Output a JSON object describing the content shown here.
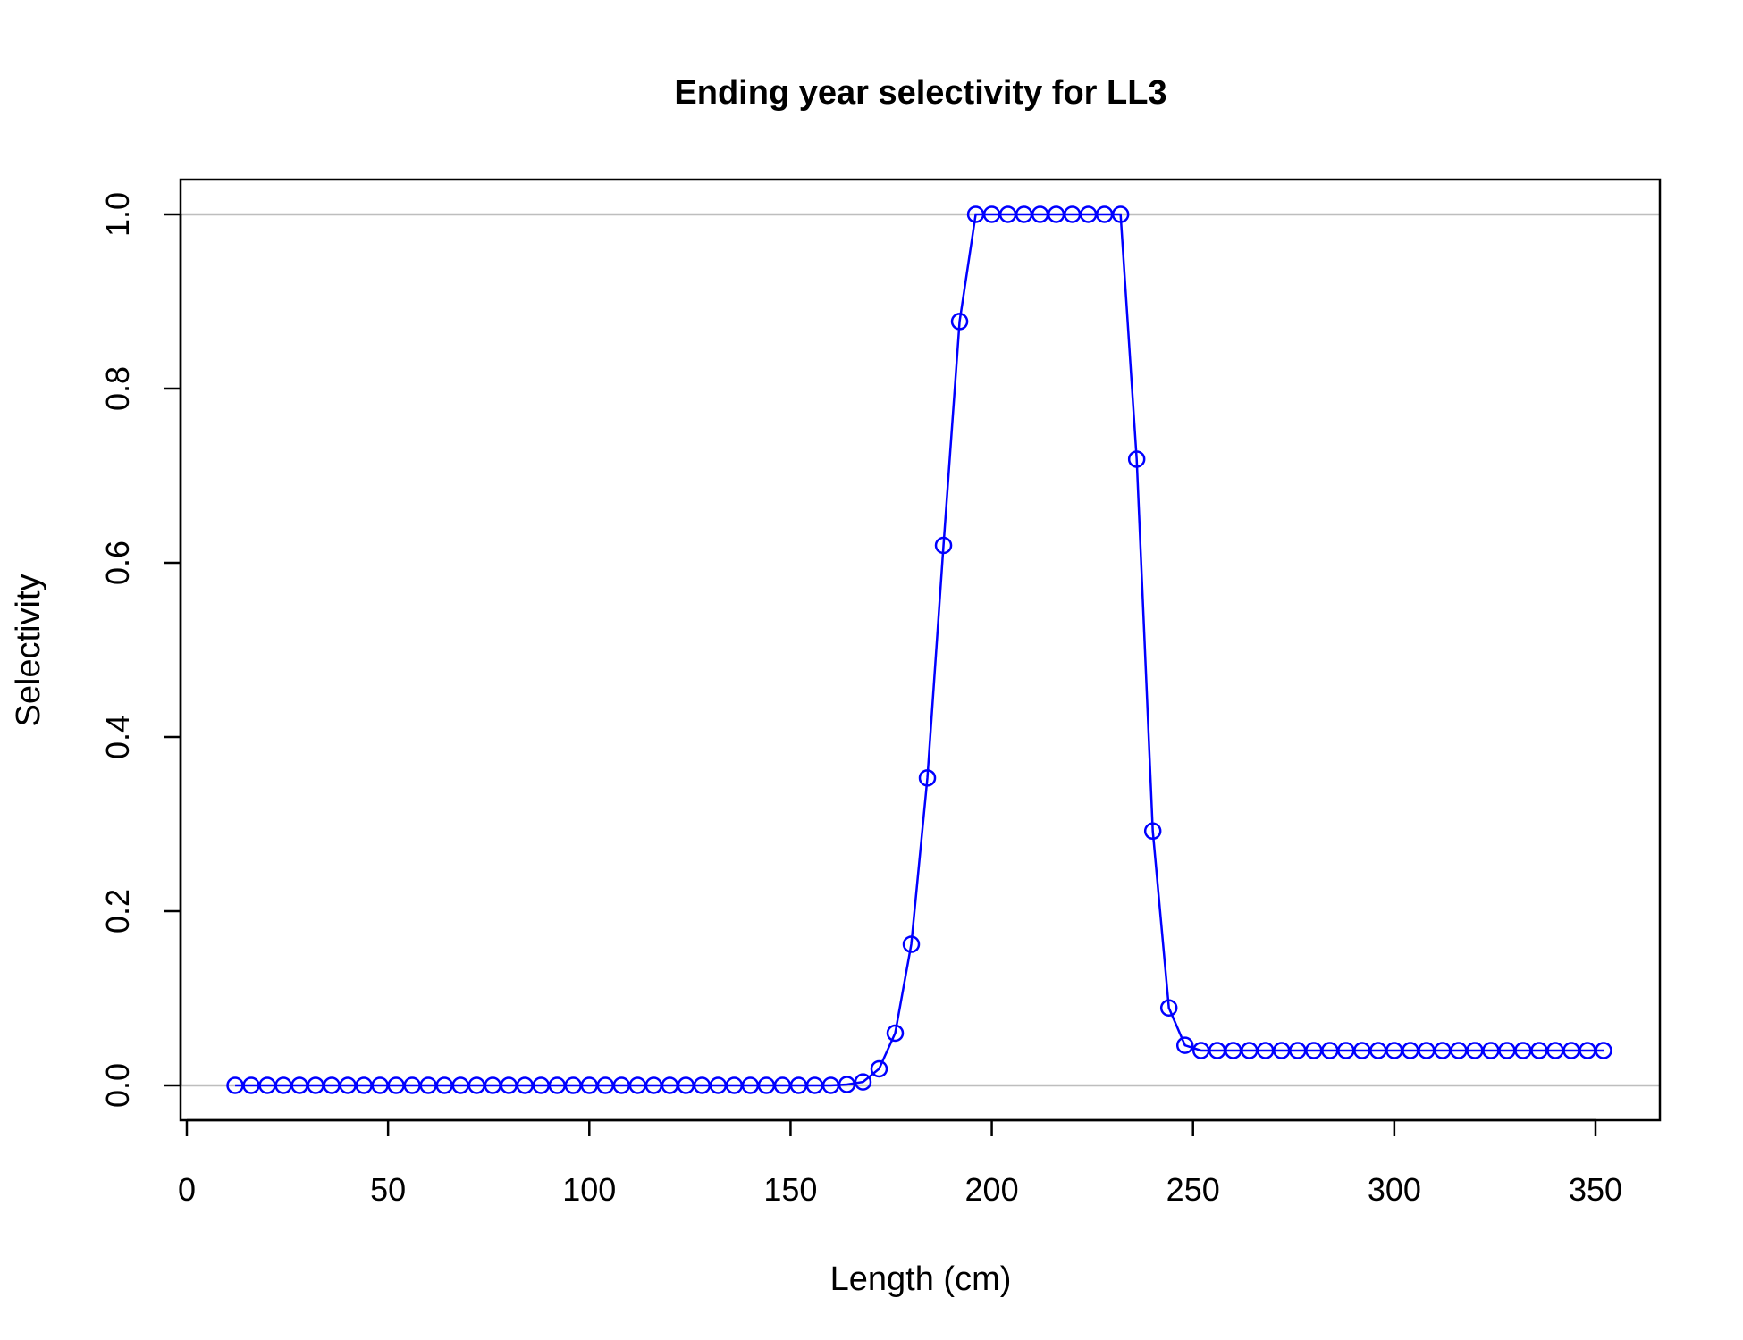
{
  "chart_data": {
    "type": "line",
    "title": "Ending year selectivity for LL3",
    "xlabel": "Length (cm)",
    "ylabel": "Selectivity",
    "xlim": [
      0,
      350
    ],
    "ylim": [
      0,
      1
    ],
    "x_ticks": [
      "0",
      "50",
      "100",
      "150",
      "200",
      "250",
      "300",
      "350"
    ],
    "y_ticks": [
      "0.0",
      "0.2",
      "0.4",
      "0.6",
      "0.8",
      "1.0"
    ],
    "reference_lines_y": [
      0,
      1
    ],
    "grid": false,
    "legend": "none",
    "colors": {
      "series": "#0000ff",
      "reference_line": "#bebebe",
      "axes": "#000000"
    },
    "series": [
      {
        "marker": "open-circle",
        "x": [
          12,
          16,
          20,
          24,
          28,
          32,
          36,
          40,
          44,
          48,
          52,
          56,
          60,
          64,
          68,
          72,
          76,
          80,
          84,
          88,
          92,
          96,
          100,
          104,
          108,
          112,
          116,
          120,
          124,
          128,
          132,
          136,
          140,
          144,
          148,
          152,
          156,
          160,
          164,
          168,
          172,
          176,
          180,
          184,
          188,
          192,
          196,
          200,
          204,
          208,
          212,
          216,
          220,
          224,
          228,
          232,
          236,
          240,
          244,
          248,
          252,
          256,
          260,
          264,
          268,
          272,
          276,
          280,
          284,
          288,
          292,
          296,
          300,
          304,
          308,
          312,
          316,
          320,
          324,
          328,
          332,
          336,
          340,
          344,
          348,
          352
        ],
        "values": [
          0,
          0,
          0,
          0,
          0,
          0,
          0,
          0,
          0,
          0,
          0,
          0,
          0,
          0,
          0,
          0,
          0,
          0,
          0,
          0,
          0,
          0,
          0,
          0,
          0,
          0,
          0,
          0,
          0,
          0,
          0,
          0,
          0,
          0,
          0,
          0,
          0,
          0,
          0.001,
          0.004,
          0.019,
          0.06,
          0.162,
          0.353,
          0.62,
          0.877,
          1,
          1,
          1,
          1,
          1,
          1,
          1,
          1,
          1,
          1,
          0.719,
          0.292,
          0.089,
          0.046,
          0.04,
          0.04,
          0.04,
          0.04,
          0.04,
          0.04,
          0.04,
          0.04,
          0.04,
          0.04,
          0.04,
          0.04,
          0.04,
          0.04,
          0.04,
          0.04,
          0.04,
          0.04,
          0.04,
          0.04,
          0.04,
          0.04,
          0.04,
          0.04,
          0.04,
          0.04
        ]
      }
    ]
  }
}
